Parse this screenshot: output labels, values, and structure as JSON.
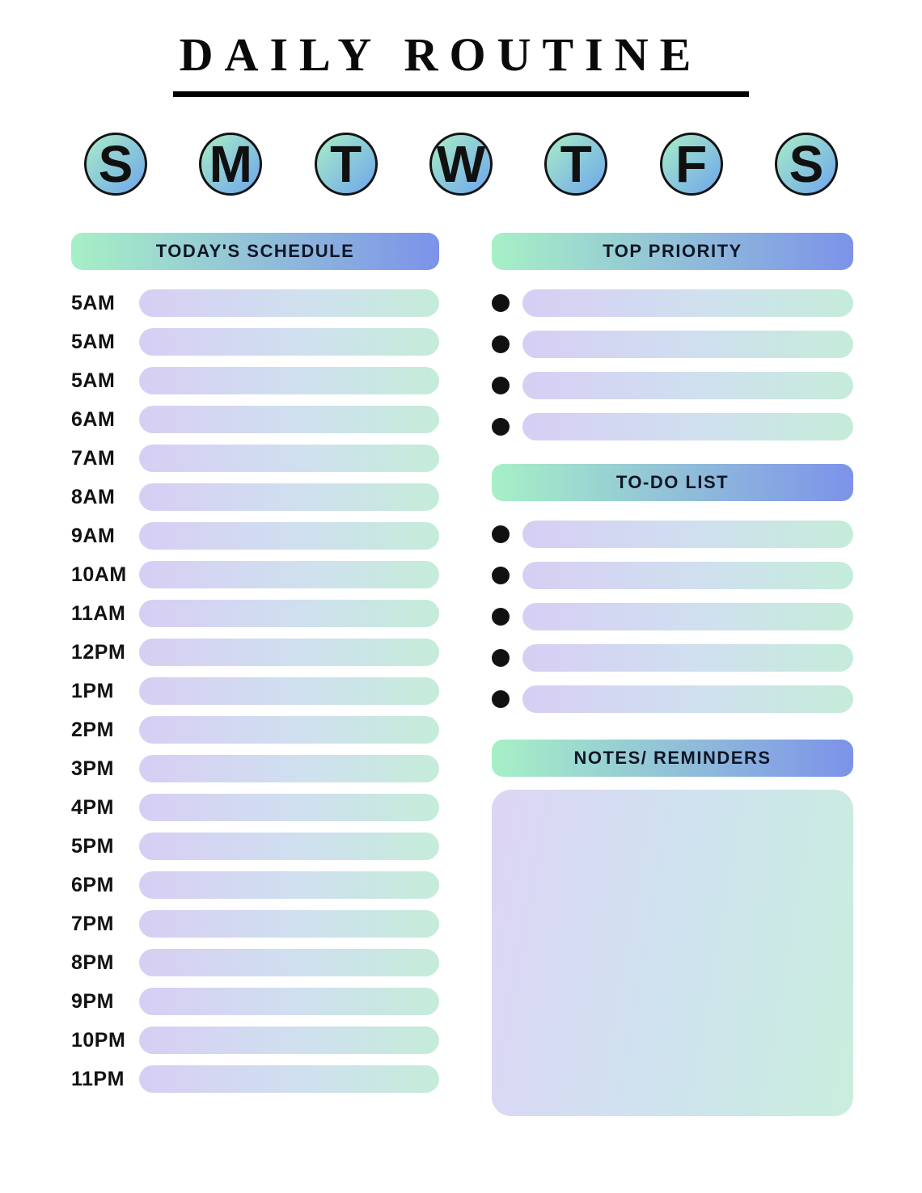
{
  "title": "DAILY ROUTINE",
  "week_days": [
    "S",
    "M",
    "T",
    "W",
    "T",
    "F",
    "S"
  ],
  "schedule": {
    "header": "TODAY'S SCHEDULE",
    "times": [
      "5AM",
      "5AM",
      "5AM",
      "6AM",
      "7AM",
      "8AM",
      "9AM",
      "10AM",
      "11AM",
      "12PM",
      "1PM",
      "2PM",
      "3PM",
      "4PM",
      "5PM",
      "6PM",
      "7PM",
      "8PM",
      "9PM",
      "10PM",
      "11PM"
    ]
  },
  "top_priority": {
    "header": "TOP PRIORITY",
    "row_count": 4
  },
  "todo_list": {
    "header": "TO-DO LIST",
    "row_count": 5
  },
  "notes": {
    "header": "NOTES/ REMINDERS"
  },
  "colors": {
    "header_gradient_start": "#a6f0c6",
    "header_gradient_end": "#7d92ea",
    "bar_gradient_start": "#d7cef4",
    "bar_gradient_end": "#c5ecd9",
    "circle_gradient_start": "#a8edc6",
    "circle_gradient_end": "#6ea6ec",
    "bullet": "#111111",
    "text": "#101522"
  }
}
